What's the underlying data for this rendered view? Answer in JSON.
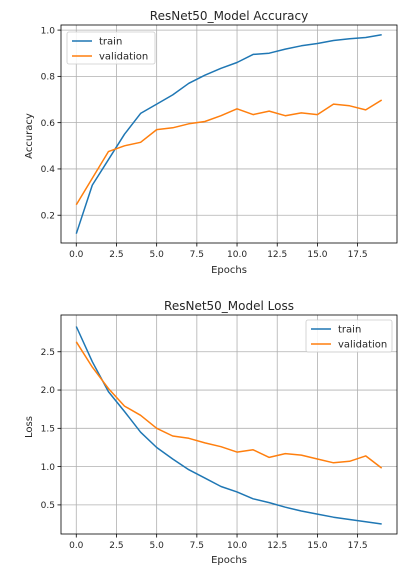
{
  "chart_data": [
    {
      "type": "line",
      "title": "ResNet50_Model Accuracy",
      "xlabel": "Epochs",
      "ylabel": "Accuracy",
      "xlim": [
        -0.95,
        19.95
      ],
      "ylim": [
        0.08,
        1.022
      ],
      "xticks": [
        0,
        2.5,
        5,
        7.5,
        10,
        12.5,
        15,
        17.5
      ],
      "xtick_labels": [
        "0.0",
        "2.5",
        "5.0",
        "7.5",
        "10.0",
        "12.5",
        "15.0",
        "17.5"
      ],
      "yticks": [
        0.2,
        0.4,
        0.6,
        0.8,
        1.0
      ],
      "ytick_labels": [
        "0.2",
        "0.4",
        "0.6",
        "0.8",
        "1.0"
      ],
      "grid": true,
      "legend_position": "top-left",
      "x": [
        0,
        1,
        2,
        3,
        4,
        5,
        6,
        7,
        8,
        9,
        10,
        11,
        12,
        13,
        14,
        15,
        16,
        17,
        18,
        19
      ],
      "series": [
        {
          "name": "train",
          "color": "#1f77b4",
          "values": [
            0.12,
            0.33,
            0.44,
            0.55,
            0.64,
            0.68,
            0.72,
            0.77,
            0.805,
            0.835,
            0.86,
            0.895,
            0.9,
            0.918,
            0.932,
            0.942,
            0.955,
            0.963,
            0.968,
            0.98
          ]
        },
        {
          "name": "validation",
          "color": "#ff7f0e",
          "values": [
            0.245,
            0.36,
            0.475,
            0.5,
            0.515,
            0.57,
            0.578,
            0.595,
            0.605,
            0.63,
            0.66,
            0.635,
            0.65,
            0.63,
            0.642,
            0.635,
            0.68,
            0.673,
            0.655,
            0.698
          ]
        }
      ]
    },
    {
      "type": "line",
      "title": "ResNet50_Model Loss",
      "xlabel": "Epochs",
      "ylabel": "Loss",
      "xlim": [
        -0.95,
        19.95
      ],
      "ylim": [
        0.12,
        2.98
      ],
      "xticks": [
        0,
        2.5,
        5,
        7.5,
        10,
        12.5,
        15,
        17.5
      ],
      "xtick_labels": [
        "0.0",
        "2.5",
        "5.0",
        "7.5",
        "10.0",
        "12.5",
        "15.0",
        "17.5"
      ],
      "yticks": [
        0.5,
        1.0,
        1.5,
        2.0,
        2.5
      ],
      "ytick_labels": [
        "0.5",
        "1.0",
        "1.5",
        "2.0",
        "2.5"
      ],
      "grid": true,
      "legend_position": "top-right",
      "x": [
        0,
        1,
        2,
        3,
        4,
        5,
        6,
        7,
        8,
        9,
        10,
        11,
        12,
        13,
        14,
        15,
        16,
        17,
        18,
        19
      ],
      "series": [
        {
          "name": "train",
          "color": "#1f77b4",
          "values": [
            2.83,
            2.37,
            1.98,
            1.72,
            1.45,
            1.25,
            1.1,
            0.96,
            0.85,
            0.74,
            0.67,
            0.58,
            0.53,
            0.47,
            0.42,
            0.38,
            0.34,
            0.31,
            0.28,
            0.25
          ]
        },
        {
          "name": "validation",
          "color": "#ff7f0e",
          "values": [
            2.63,
            2.3,
            2.02,
            1.79,
            1.67,
            1.5,
            1.4,
            1.37,
            1.31,
            1.26,
            1.19,
            1.22,
            1.12,
            1.17,
            1.15,
            1.1,
            1.05,
            1.07,
            1.14,
            0.98
          ]
        }
      ]
    }
  ]
}
